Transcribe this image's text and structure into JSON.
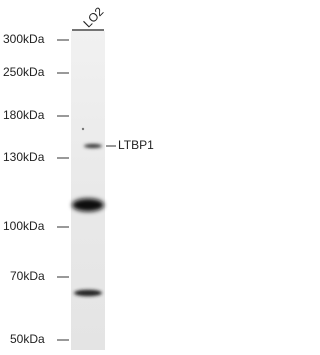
{
  "lane_labels": [
    "LO2"
  ],
  "markers": [
    "300kDa",
    "250kDa",
    "180kDa",
    "130kDa",
    "100kDa",
    "70kDa",
    "50kDa"
  ],
  "band_label": "LTBP1"
}
